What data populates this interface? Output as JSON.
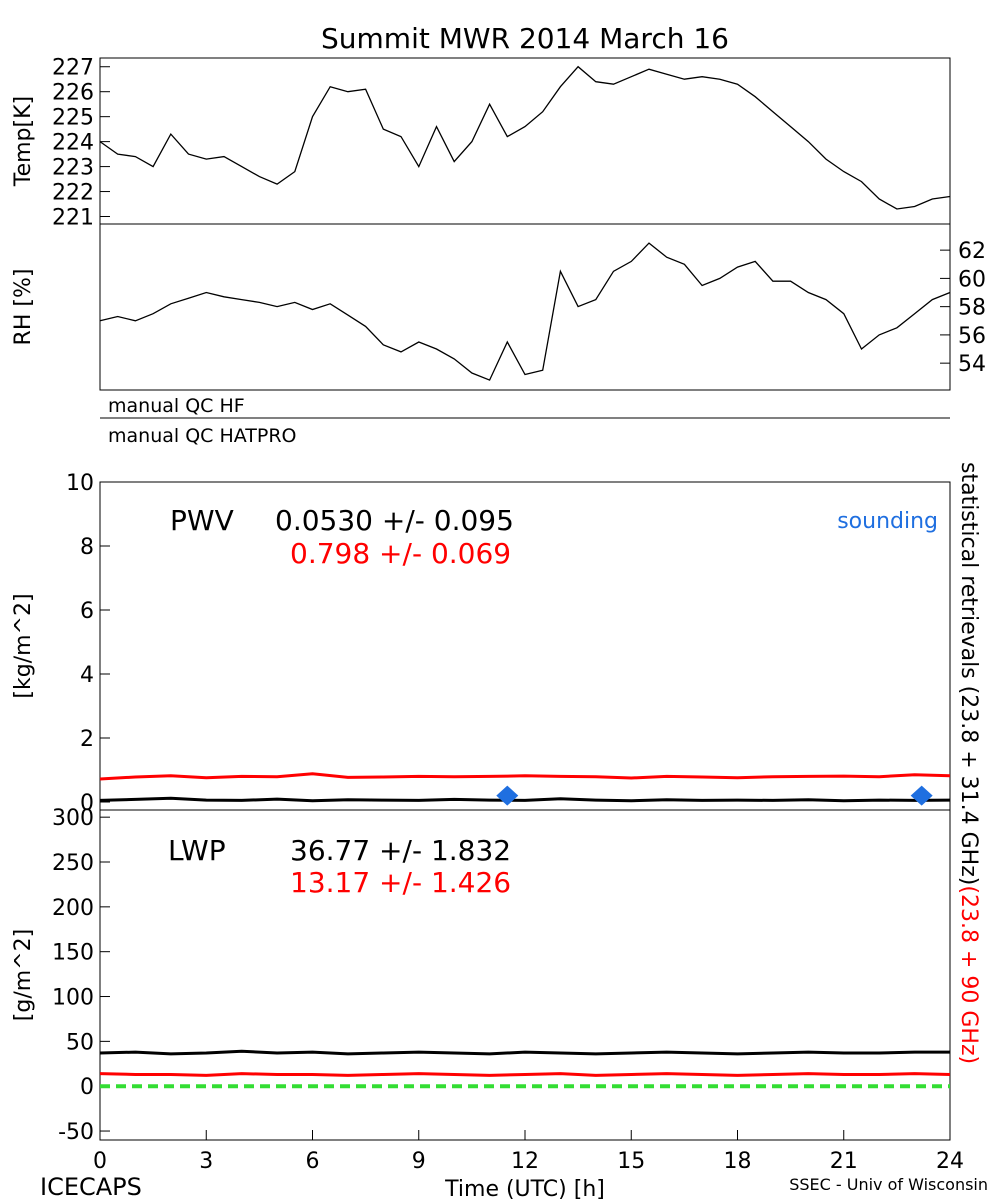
{
  "title": "Summit MWR 2014 March 16",
  "footer_left": "ICECAPS",
  "footer_right": "SSEC - Univ of Wisconsin",
  "side_label_black": "statistical retrievals (23.8 + 31.4 GHz)",
  "side_label_red": "(23.8 + 90 GHz)",
  "qc_rows": [
    "manual QC HF",
    "manual QC HATPRO"
  ],
  "chart_data": [
    {
      "type": "line",
      "ylabel": "Temp[K]",
      "yaxis_side": "left",
      "xlim": [
        0,
        24
      ],
      "ylim": [
        220.7,
        227.35
      ],
      "yticks": [
        221,
        222,
        223,
        224,
        225,
        226,
        227
      ],
      "x": [
        0,
        0.5,
        1,
        1.5,
        2,
        2.5,
        3,
        3.5,
        4,
        4.5,
        5,
        5.5,
        6,
        6.5,
        7,
        7.5,
        8,
        8.5,
        9,
        9.5,
        10,
        10.5,
        11,
        11.5,
        12,
        12.5,
        13,
        13.5,
        14,
        14.5,
        15,
        15.5,
        16,
        16.5,
        17,
        17.5,
        18,
        18.5,
        19,
        19.5,
        20,
        20.5,
        21,
        21.5,
        22,
        22.5,
        23,
        23.5,
        24
      ],
      "series": [
        {
          "color": "#000000",
          "values": [
            224.0,
            223.5,
            223.4,
            223.0,
            224.3,
            223.5,
            223.3,
            223.4,
            223.0,
            222.6,
            222.3,
            222.8,
            225.0,
            226.2,
            226.0,
            226.1,
            224.5,
            224.2,
            223.0,
            224.6,
            223.2,
            224.0,
            225.5,
            224.2,
            224.6,
            225.2,
            226.2,
            227.0,
            226.4,
            226.3,
            226.6,
            226.9,
            226.7,
            226.5,
            226.6,
            226.5,
            226.3,
            225.8,
            225.2,
            224.6,
            224.0,
            223.3,
            222.8,
            222.4,
            221.7,
            221.3,
            221.4,
            221.7,
            221.8
          ]
        }
      ]
    },
    {
      "type": "line",
      "ylabel": "RH [%]",
      "yaxis_side": "right",
      "xlim": [
        0,
        24
      ],
      "ylim": [
        52.1,
        63.85
      ],
      "yticks": [
        54,
        56,
        58,
        60,
        62
      ],
      "x": [
        0,
        0.5,
        1,
        1.5,
        2,
        2.5,
        3,
        3.5,
        4,
        4.5,
        5,
        5.5,
        6,
        6.5,
        7,
        7.5,
        8,
        8.5,
        9,
        9.5,
        10,
        10.5,
        11,
        11.5,
        12,
        12.5,
        13,
        13.5,
        14,
        14.5,
        15,
        15.5,
        16,
        16.5,
        17,
        17.5,
        18,
        18.5,
        19,
        19.5,
        20,
        20.5,
        21,
        21.5,
        22,
        22.5,
        23,
        23.5,
        24
      ],
      "series": [
        {
          "color": "#000000",
          "values": [
            57.0,
            57.3,
            57.0,
            57.5,
            58.2,
            58.6,
            59.0,
            58.7,
            58.5,
            58.3,
            58.0,
            58.3,
            57.8,
            58.2,
            57.4,
            56.6,
            55.3,
            54.8,
            55.5,
            55.0,
            54.3,
            53.3,
            52.8,
            55.5,
            53.2,
            53.5,
            60.5,
            58.0,
            58.5,
            60.5,
            61.2,
            62.5,
            61.5,
            61.0,
            59.5,
            60.0,
            60.8,
            61.2,
            59.8,
            59.8,
            59.0,
            58.5,
            57.5,
            55.0,
            56.0,
            56.5,
            57.5,
            58.5,
            59.0
          ]
        }
      ]
    },
    {
      "type": "line",
      "ylabel": "[kg/m^2]",
      "yaxis_side": "left",
      "xlim": [
        0,
        24
      ],
      "ylim": [
        -0.25,
        10
      ],
      "yticks": [
        0,
        2,
        4,
        6,
        8,
        10
      ],
      "annotations": [
        {
          "text": "PWV",
          "color": "#000000"
        },
        {
          "text": "0.0530 +/- 0.095",
          "color": "#000000"
        },
        {
          "text": "0.798 +/- 0.069",
          "color": "#ff0000"
        }
      ],
      "x": [
        0,
        1,
        2,
        3,
        4,
        5,
        6,
        7,
        8,
        9,
        10,
        11,
        12,
        13,
        14,
        15,
        16,
        17,
        18,
        19,
        20,
        21,
        22,
        23,
        24
      ],
      "series": [
        {
          "color": "#000000",
          "values": [
            0.05,
            0.08,
            0.12,
            0.06,
            0.05,
            0.09,
            0.04,
            0.07,
            0.06,
            0.05,
            0.08,
            0.06,
            0.05,
            0.1,
            0.06,
            0.04,
            0.07,
            0.05,
            0.06,
            0.05,
            0.07,
            0.04,
            0.06,
            0.05,
            0.06
          ]
        },
        {
          "color": "#ff0000",
          "values": [
            0.72,
            0.78,
            0.82,
            0.76,
            0.8,
            0.79,
            0.88,
            0.77,
            0.78,
            0.8,
            0.79,
            0.8,
            0.82,
            0.8,
            0.79,
            0.75,
            0.8,
            0.78,
            0.76,
            0.79,
            0.8,
            0.81,
            0.79,
            0.85,
            0.82
          ]
        },
        {
          "name": "sounding",
          "color": "#1f6fe0",
          "marker": "diamond",
          "x": [
            11.5,
            23.2
          ],
          "values": [
            0.2,
            0.2
          ]
        }
      ]
    },
    {
      "type": "line",
      "ylabel": "[g/m^2]",
      "yaxis_side": "left",
      "xlabel": "Time (UTC) [h]",
      "xlim": [
        0,
        24
      ],
      "ylim": [
        -60,
        308
      ],
      "yticks": [
        -50,
        0,
        50,
        100,
        150,
        200,
        250,
        300
      ],
      "xticks": [
        0,
        3,
        6,
        9,
        12,
        15,
        18,
        21,
        24
      ],
      "annotations": [
        {
          "text": "LWP",
          "color": "#000000"
        },
        {
          "text": "36.77 +/- 1.832",
          "color": "#000000"
        },
        {
          "text": "13.17 +/- 1.426",
          "color": "#ff0000"
        }
      ],
      "reference_line": {
        "value": 0,
        "color": "#33dd33"
      },
      "x": [
        0,
        1,
        2,
        3,
        4,
        5,
        6,
        7,
        8,
        9,
        10,
        11,
        12,
        13,
        14,
        15,
        16,
        17,
        18,
        19,
        20,
        21,
        22,
        23,
        24
      ],
      "series": [
        {
          "color": "#000000",
          "values": [
            37,
            38,
            36,
            37,
            39,
            37,
            38,
            36,
            37,
            38,
            37,
            36,
            38,
            37,
            36,
            37,
            38,
            37,
            36,
            37,
            38,
            37,
            37,
            38,
            38
          ]
        },
        {
          "color": "#ff0000",
          "values": [
            14,
            13,
            13,
            12,
            14,
            13,
            13,
            12,
            13,
            14,
            13,
            12,
            13,
            14,
            12,
            13,
            14,
            13,
            12,
            13,
            14,
            13,
            13,
            14,
            13
          ]
        }
      ]
    }
  ]
}
